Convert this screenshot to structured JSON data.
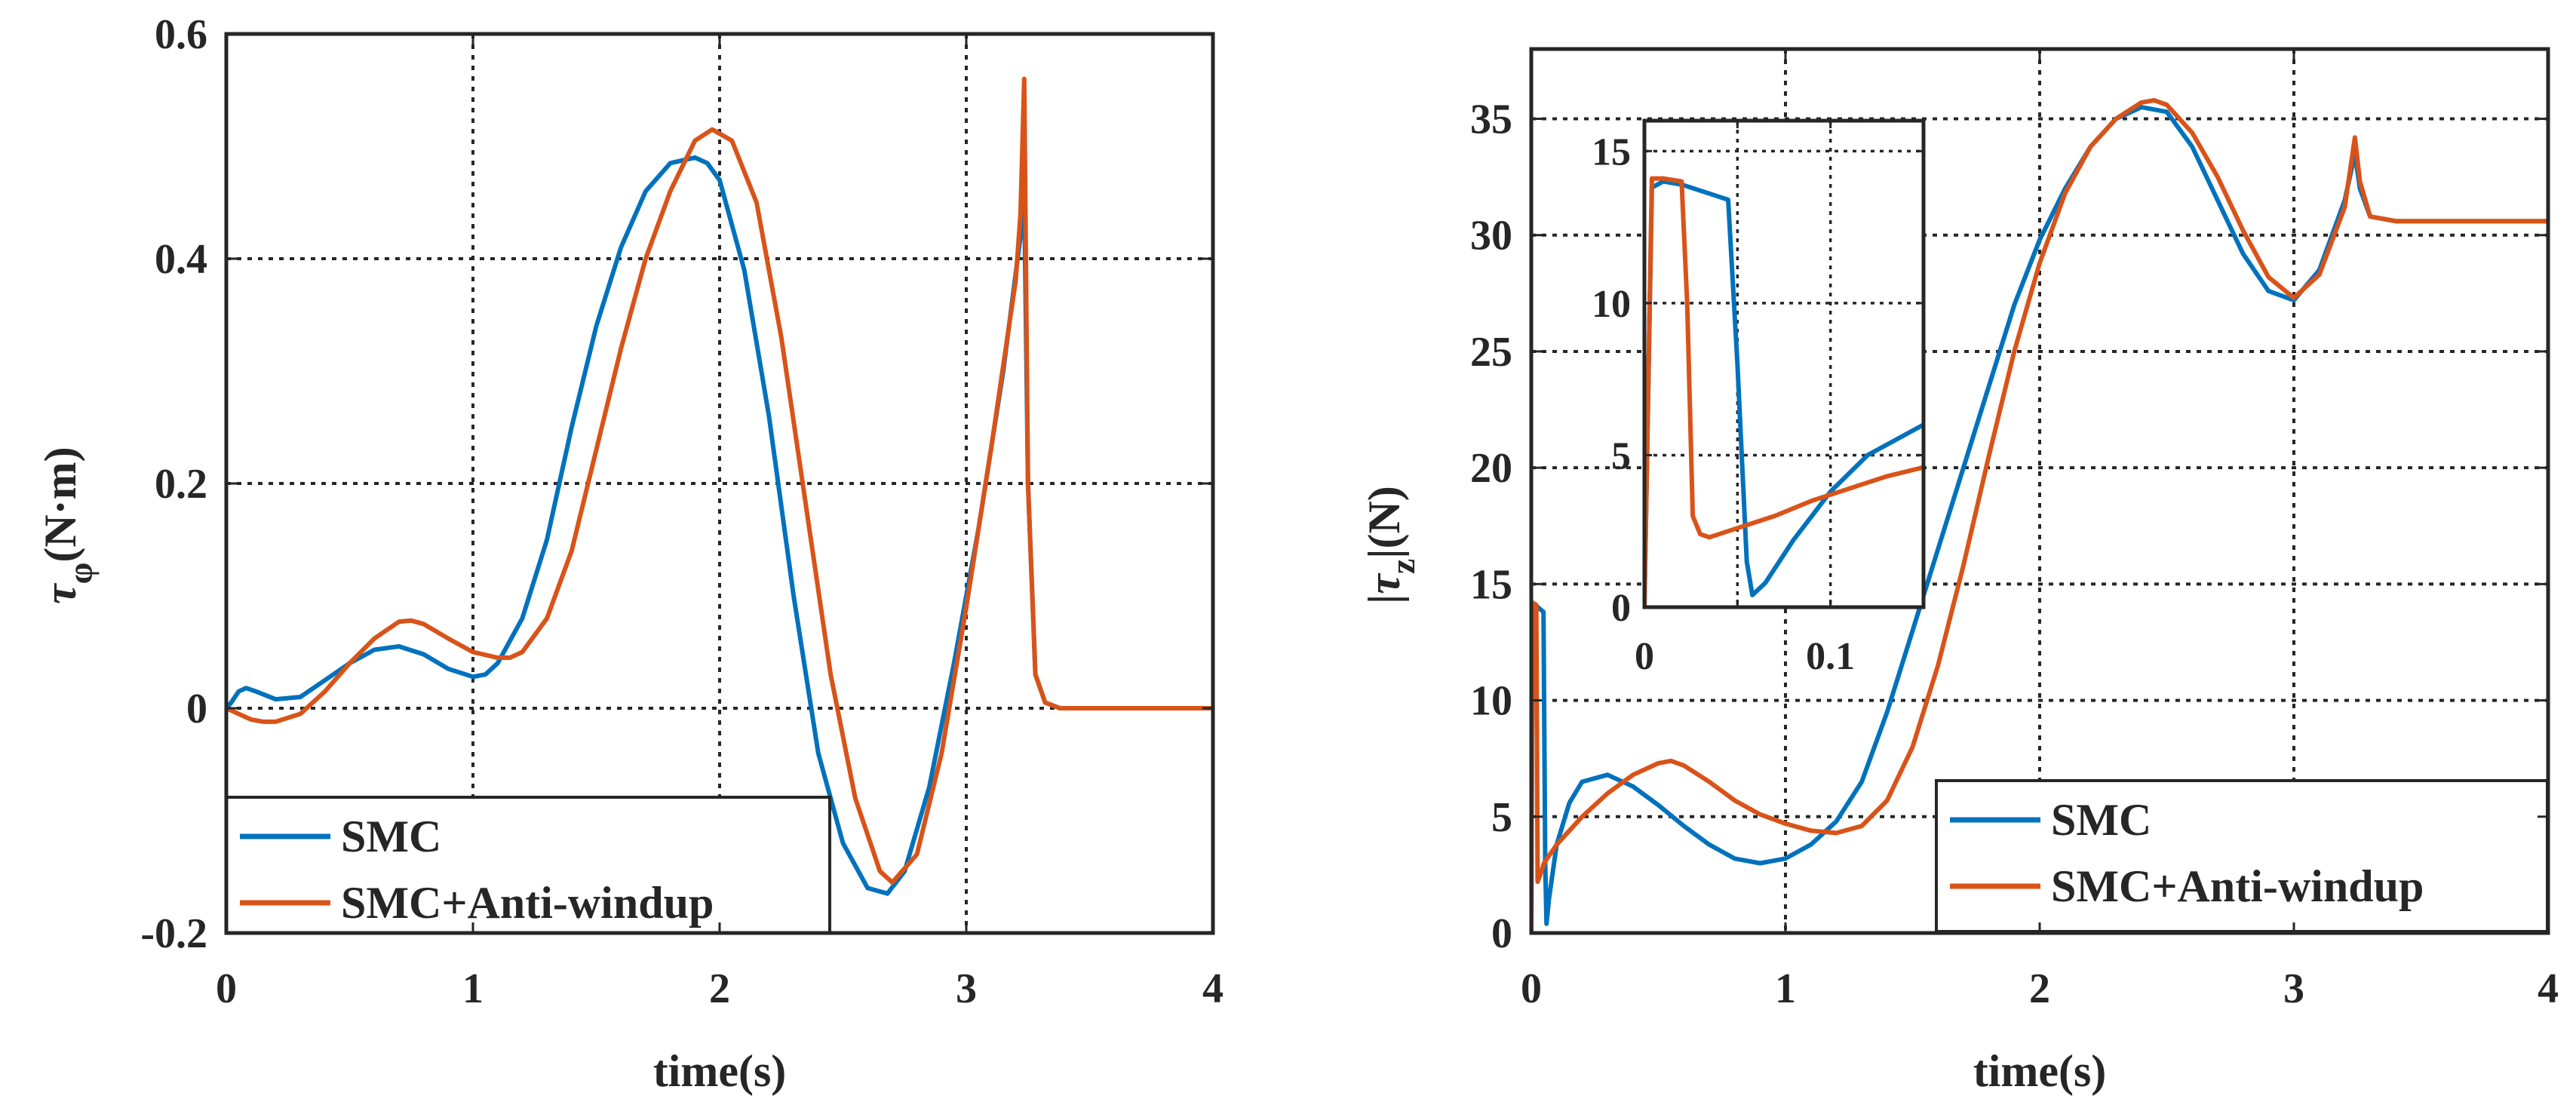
{
  "colors": {
    "smc": "#0072BD",
    "anti_windup": "#D95319",
    "axes": "#262626",
    "grid": "#262626"
  },
  "chart_data": [
    {
      "type": "line",
      "xlabel": "time(s)",
      "ylabel_symbol": "τ",
      "ylabel_subscript": "φ",
      "ylabel_unit": "(N·m)",
      "xlim": [
        0,
        4
      ],
      "ylim": [
        -0.2,
        0.6
      ],
      "xticks": [
        0,
        1,
        2,
        3,
        4
      ],
      "yticks": [
        -0.2,
        0,
        0.2,
        0.4,
        0.6
      ],
      "xtick_labels": [
        "0",
        "1",
        "2",
        "3",
        "4"
      ],
      "ytick_labels": [
        "-0.2",
        "0",
        "0.2",
        "0.4",
        "0.6"
      ],
      "grid": true,
      "legend_position": "bottom-left",
      "series": [
        {
          "name": "SMC",
          "color": "#0072BD",
          "x": [
            0,
            0.02,
            0.05,
            0.08,
            0.12,
            0.2,
            0.3,
            0.4,
            0.5,
            0.6,
            0.7,
            0.8,
            0.9,
            1.0,
            1.05,
            1.1,
            1.2,
            1.3,
            1.4,
            1.5,
            1.6,
            1.7,
            1.8,
            1.9,
            1.95,
            2.0,
            2.1,
            2.2,
            2.3,
            2.4,
            2.5,
            2.6,
            2.68,
            2.75,
            2.85,
            2.95,
            3.05,
            3.15,
            3.22,
            3.235,
            3.25,
            3.28,
            3.32,
            3.38,
            3.5,
            4.0
          ],
          "y": [
            0,
            0.005,
            0.015,
            0.018,
            0.015,
            0.008,
            0.01,
            0.025,
            0.04,
            0.052,
            0.055,
            0.048,
            0.035,
            0.028,
            0.03,
            0.04,
            0.08,
            0.15,
            0.25,
            0.34,
            0.41,
            0.46,
            0.485,
            0.49,
            0.485,
            0.47,
            0.39,
            0.26,
            0.1,
            -0.04,
            -0.12,
            -0.16,
            -0.165,
            -0.145,
            -0.07,
            0.04,
            0.16,
            0.3,
            0.42,
            0.46,
            0.2,
            0.03,
            0.005,
            0,
            0,
            0
          ]
        },
        {
          "name": "SMC+Anti-windup",
          "color": "#D95319",
          "x": [
            0,
            0.05,
            0.1,
            0.15,
            0.2,
            0.3,
            0.4,
            0.5,
            0.6,
            0.7,
            0.75,
            0.8,
            0.9,
            1.0,
            1.1,
            1.15,
            1.2,
            1.3,
            1.4,
            1.5,
            1.6,
            1.7,
            1.8,
            1.9,
            1.97,
            2.05,
            2.15,
            2.25,
            2.35,
            2.45,
            2.55,
            2.65,
            2.7,
            2.8,
            2.9,
            3.0,
            3.1,
            3.2,
            3.22,
            3.235,
            3.25,
            3.28,
            3.32,
            3.38,
            3.5,
            4.0
          ],
          "y": [
            0,
            -0.005,
            -0.01,
            -0.012,
            -0.012,
            -0.005,
            0.015,
            0.04,
            0.062,
            0.077,
            0.078,
            0.075,
            0.062,
            0.05,
            0.045,
            0.045,
            0.05,
            0.08,
            0.14,
            0.23,
            0.32,
            0.4,
            0.46,
            0.505,
            0.515,
            0.505,
            0.45,
            0.33,
            0.18,
            0.03,
            -0.08,
            -0.145,
            -0.155,
            -0.13,
            -0.04,
            0.09,
            0.23,
            0.38,
            0.44,
            0.56,
            0.2,
            0.03,
            0.005,
            0,
            0,
            0
          ]
        }
      ]
    },
    {
      "type": "line",
      "xlabel": "time(s)",
      "ylabel": "|τz|(N)",
      "ylabel_sub": "z",
      "xlim": [
        0,
        4
      ],
      "ylim": [
        0,
        38
      ],
      "xticks": [
        0,
        1,
        2,
        3,
        4
      ],
      "yticks": [
        0,
        5,
        10,
        15,
        20,
        25,
        30,
        35
      ],
      "xtick_labels": [
        "0",
        "1",
        "2",
        "3",
        "4"
      ],
      "ytick_labels": [
        "0",
        "5",
        "10",
        "15",
        "20",
        "25",
        "30",
        "35"
      ],
      "grid": true,
      "legend_position": "bottom-right",
      "series": [
        {
          "name": "SMC",
          "color": "#0072BD",
          "x": [
            0,
            0.005,
            0.048,
            0.055,
            0.06,
            0.07,
            0.1,
            0.15,
            0.2,
            0.3,
            0.4,
            0.5,
            0.6,
            0.7,
            0.8,
            0.9,
            1.0,
            1.1,
            1.2,
            1.3,
            1.4,
            1.5,
            1.6,
            1.7,
            1.8,
            1.9,
            2.0,
            2.1,
            2.2,
            2.3,
            2.4,
            2.5,
            2.6,
            2.7,
            2.8,
            2.9,
            3.0,
            3.1,
            3.2,
            3.24,
            3.26,
            3.3,
            3.4,
            3.6,
            4.0
          ],
          "y": [
            0,
            14.2,
            13.8,
            3,
            0.4,
            1.5,
            3.8,
            5.6,
            6.5,
            6.8,
            6.3,
            5.5,
            4.6,
            3.8,
            3.2,
            3.0,
            3.2,
            3.8,
            4.8,
            6.5,
            9.5,
            13,
            16.5,
            20,
            23.5,
            27,
            29.8,
            32,
            33.8,
            35,
            35.5,
            35.3,
            33.8,
            31.5,
            29.2,
            27.6,
            27.2,
            28.5,
            31.5,
            33.5,
            32,
            30.8,
            30.6,
            30.6,
            30.6
          ]
        },
        {
          "name": "SMC+Anti-windup",
          "color": "#D95319",
          "x": [
            0,
            0.005,
            0.02,
            0.025,
            0.035,
            0.05,
            0.1,
            0.2,
            0.3,
            0.4,
            0.5,
            0.55,
            0.6,
            0.7,
            0.8,
            0.9,
            1.0,
            1.1,
            1.2,
            1.3,
            1.4,
            1.5,
            1.6,
            1.7,
            1.8,
            1.9,
            2.0,
            2.1,
            2.2,
            2.3,
            2.4,
            2.45,
            2.5,
            2.6,
            2.7,
            2.8,
            2.9,
            3.0,
            3.1,
            3.2,
            3.24,
            3.26,
            3.3,
            3.4,
            3.6,
            4.0
          ],
          "y": [
            0,
            14.2,
            14.1,
            2.2,
            2.5,
            3.0,
            3.8,
            5.0,
            6.0,
            6.8,
            7.3,
            7.4,
            7.2,
            6.5,
            5.7,
            5.1,
            4.7,
            4.4,
            4.3,
            4.6,
            5.7,
            8.0,
            11.5,
            15.8,
            20.5,
            25.0,
            28.8,
            31.8,
            33.8,
            35.0,
            35.7,
            35.8,
            35.6,
            34.4,
            32.5,
            30.2,
            28.2,
            27.3,
            28.3,
            31.2,
            34.2,
            32.3,
            30.8,
            30.6,
            30.6,
            30.6
          ]
        }
      ],
      "inset": {
        "xlim": [
          0,
          0.15
        ],
        "ylim": [
          0,
          16
        ],
        "xticks": [
          0,
          0.05,
          0.1,
          0.15
        ],
        "yticks": [
          0,
          5,
          10,
          15
        ],
        "xtick_labels": [
          "0",
          "0.1"
        ],
        "ytick_labels": [
          "0",
          "5",
          "10",
          "15"
        ],
        "grid": true,
        "series": [
          {
            "name": "SMC",
            "color": "#0072BD",
            "x": [
              0,
              0.004,
              0.01,
              0.02,
              0.03,
              0.04,
              0.045,
              0.05,
              0.055,
              0.058,
              0.065,
              0.08,
              0.1,
              0.12,
              0.15
            ],
            "y": [
              0,
              13.8,
              14.0,
              13.9,
              13.7,
              13.5,
              13.4,
              8,
              1.5,
              0.4,
              0.8,
              2.2,
              3.8,
              5.0,
              6.0
            ]
          },
          {
            "name": "SMC+Anti-windup",
            "color": "#D95319",
            "x": [
              0,
              0.004,
              0.01,
              0.02,
              0.023,
              0.026,
              0.03,
              0.035,
              0.05,
              0.07,
              0.09,
              0.11,
              0.13,
              0.15
            ],
            "y": [
              0,
              14.1,
              14.1,
              14.0,
              10,
              3.0,
              2.4,
              2.3,
              2.6,
              3.0,
              3.5,
              3.9,
              4.3,
              4.6
            ]
          }
        ]
      }
    }
  ]
}
